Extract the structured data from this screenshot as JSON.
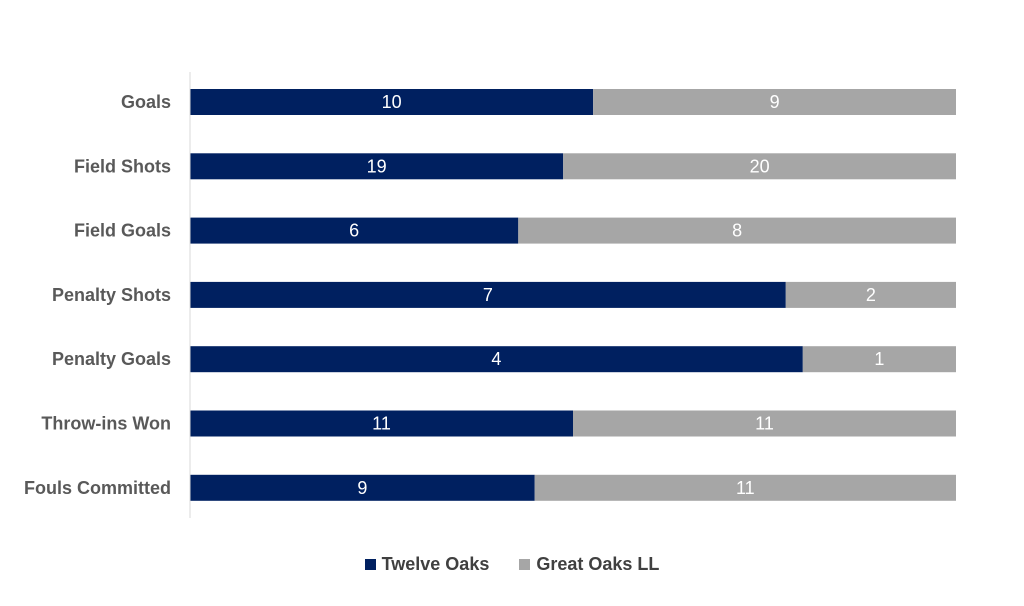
{
  "chart_data": {
    "type": "bar",
    "orientation": "horizontal",
    "stacking": "percent",
    "categories": [
      "Goals",
      "Field Shots",
      "Field Goals",
      "Penalty Shots",
      "Penalty Goals",
      "Throw-ins Won",
      "Fouls Committed"
    ],
    "series": [
      {
        "name": "Twelve Oaks",
        "values": [
          10,
          19,
          6,
          7,
          4,
          11,
          9
        ],
        "color": "#002060"
      },
      {
        "name": "Great Oaks LL",
        "values": [
          9,
          20,
          8,
          2,
          1,
          11,
          11
        ],
        "color": "#A6A6A6"
      }
    ],
    "legend_position": "bottom",
    "grid": false,
    "data_labels": true
  }
}
